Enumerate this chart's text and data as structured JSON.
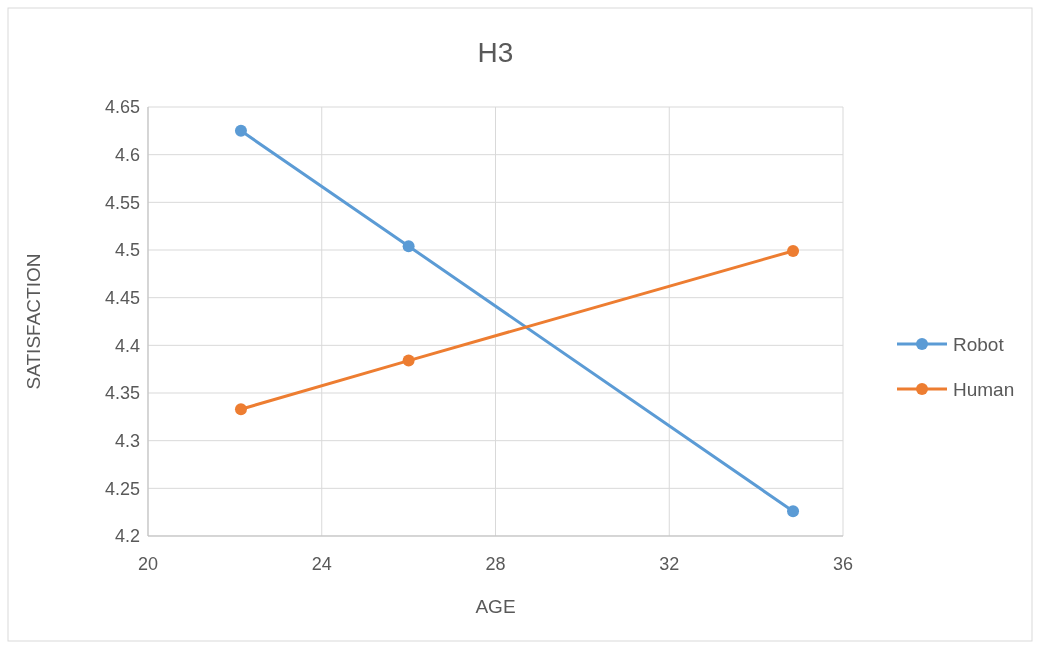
{
  "chart_data": {
    "type": "line",
    "title": "H3",
    "xlabel": "AGE",
    "ylabel": "SATISFACTION",
    "series": [
      {
        "name": "Robot",
        "color": "#5b9bd5",
        "x": [
          22.14,
          26,
          34.85
        ],
        "values": [
          4.625,
          4.504,
          4.226
        ]
      },
      {
        "name": "Human",
        "color": "#ed7d31",
        "x": [
          22.14,
          26,
          34.85
        ],
        "values": [
          4.333,
          4.384,
          4.499
        ]
      }
    ],
    "xlim": [
      20,
      36
    ],
    "xticks": [
      20,
      24,
      28,
      32,
      36
    ],
    "ylim": [
      4.2,
      4.65
    ],
    "yticks": [
      {
        "value": 4.2,
        "label": "4.2"
      },
      {
        "value": 4.25,
        "label": "4.25"
      },
      {
        "value": 4.3,
        "label": "4.3"
      },
      {
        "value": 4.35,
        "label": "4.35"
      },
      {
        "value": 4.4,
        "label": "4.4"
      },
      {
        "value": 4.45,
        "label": "4.45"
      },
      {
        "value": 4.5,
        "label": "4.5"
      },
      {
        "value": 4.55,
        "label": "4.55"
      },
      {
        "value": 4.6,
        "label": "4.6"
      },
      {
        "value": 4.65,
        "label": "4.65"
      }
    ],
    "grid": true,
    "legend": "right",
    "marker": "circle",
    "line_style": "solid"
  }
}
